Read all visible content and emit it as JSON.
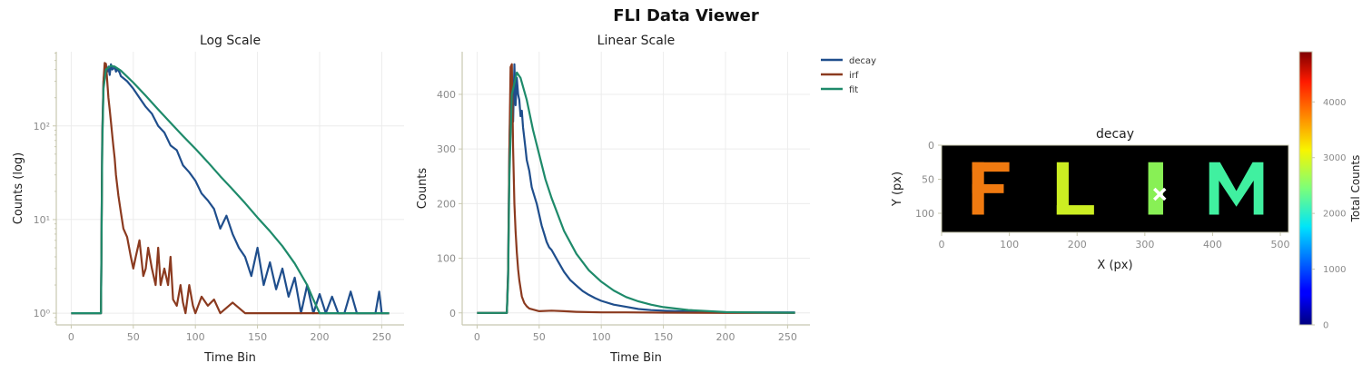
{
  "window": {
    "title": "FLI Data Viewer"
  },
  "colors": {
    "decay": "#1f4e8c",
    "irf": "#8b3a1f",
    "fit": "#1e8a6a",
    "axis": "#c8c8b0",
    "grid": "#ececec",
    "tick_text": "#8a8a8a",
    "image_background": "#000000"
  },
  "chart_data": [
    {
      "id": "log_panel",
      "type": "line",
      "title": "Log Scale",
      "xlabel": "Time Bin",
      "ylabel": "Counts (log)",
      "xscale": "linear",
      "yscale": "log",
      "xlim": [
        -12,
        268
      ],
      "ylim": [
        0.75,
        620
      ],
      "xticks": [
        0,
        50,
        100,
        150,
        200,
        250
      ],
      "yticks": [
        1,
        10,
        100
      ],
      "ytick_labels": [
        "10⁰",
        "10¹",
        "10²"
      ],
      "grid": true,
      "series": [
        {
          "name": "decay",
          "color": "#1f4e8c",
          "x": [
            0,
            24,
            25,
            26,
            27,
            28,
            29,
            30,
            31,
            32,
            33,
            34,
            35,
            36,
            37,
            38,
            39,
            40,
            45,
            50,
            55,
            60,
            65,
            70,
            75,
            80,
            85,
            90,
            95,
            100,
            105,
            110,
            115,
            120,
            125,
            130,
            135,
            140,
            145,
            150,
            155,
            160,
            165,
            170,
            175,
            180,
            185,
            190,
            195,
            200,
            205,
            210,
            215,
            220,
            225,
            230,
            235,
            240,
            245,
            248,
            250,
            252,
            256
          ],
          "y": [
            1,
            1,
            80,
            300,
            400,
            420,
            380,
            430,
            350,
            455,
            400,
            410,
            430,
            380,
            400,
            390,
            370,
            340,
            300,
            250,
            200,
            160,
            135,
            100,
            85,
            62,
            55,
            38,
            32,
            26,
            19,
            16,
            13,
            8,
            11,
            7,
            5,
            4,
            2.5,
            5,
            2,
            3.5,
            1.8,
            3,
            1.5,
            2.4,
            1,
            2,
            1,
            1.6,
            1,
            1.5,
            1,
            1,
            1.7,
            1,
            1,
            1,
            1,
            1.7,
            1,
            1,
            1
          ]
        },
        {
          "name": "irf",
          "color": "#8b3a1f",
          "x": [
            0,
            24,
            25,
            26,
            27,
            28,
            29,
            30,
            31,
            32,
            33,
            34,
            35,
            36,
            38,
            40,
            42,
            45,
            48,
            50,
            52,
            55,
            58,
            60,
            62,
            65,
            68,
            70,
            72,
            75,
            78,
            80,
            82,
            85,
            88,
            90,
            92,
            95,
            98,
            100,
            105,
            110,
            115,
            120,
            130,
            140,
            150,
            160,
            170,
            200,
            256
          ],
          "y": [
            1,
            1,
            70,
            300,
            470,
            460,
            300,
            200,
            150,
            110,
            80,
            60,
            45,
            30,
            18,
            12,
            8,
            6.5,
            4,
            3,
            4,
            6,
            2.5,
            3,
            5,
            3,
            2,
            5,
            2,
            3,
            2,
            4,
            1.4,
            1.2,
            2,
            1.3,
            1,
            2,
            1.2,
            1,
            1.5,
            1.2,
            1.4,
            1,
            1.3,
            1,
            1,
            1,
            1,
            1,
            1
          ]
        },
        {
          "name": "fit",
          "color": "#1e8a6a",
          "x": [
            0,
            24,
            25,
            26,
            28,
            30,
            32,
            35,
            40,
            50,
            60,
            70,
            80,
            90,
            100,
            110,
            120,
            130,
            140,
            150,
            160,
            170,
            180,
            190,
            195,
            200,
            210,
            256
          ],
          "y": [
            1,
            1,
            60,
            250,
            400,
            420,
            440,
            430,
            390,
            290,
            210,
            150,
            108,
            78,
            57,
            41,
            29,
            21,
            15,
            10.5,
            7.5,
            5.2,
            3.4,
            2,
            1.4,
            1,
            1,
            1
          ]
        }
      ]
    },
    {
      "id": "linear_panel",
      "type": "line",
      "title": "Linear Scale",
      "xlabel": "Time Bin",
      "ylabel": "Counts",
      "xscale": "linear",
      "yscale": "linear",
      "xlim": [
        -12,
        268
      ],
      "ylim": [
        -22,
        478
      ],
      "xticks": [
        0,
        50,
        100,
        150,
        200,
        250
      ],
      "yticks": [
        0,
        100,
        200,
        300,
        400
      ],
      "grid": true,
      "legend": {
        "position": "outside-right-top",
        "entries": [
          "decay",
          "irf",
          "fit"
        ]
      },
      "series": [
        {
          "name": "decay",
          "color": "#1f4e8c",
          "x": [
            0,
            24,
            25,
            26,
            27,
            28,
            29,
            30,
            31,
            32,
            33,
            34,
            35,
            36,
            37,
            38,
            39,
            40,
            42,
            44,
            46,
            48,
            50,
            52,
            54,
            56,
            58,
            60,
            65,
            70,
            75,
            80,
            85,
            90,
            95,
            100,
            110,
            120,
            130,
            140,
            150,
            160,
            180,
            200,
            220,
            256
          ],
          "y": [
            0,
            0,
            80,
            300,
            400,
            420,
            350,
            455,
            380,
            430,
            400,
            390,
            360,
            370,
            340,
            320,
            300,
            280,
            260,
            230,
            215,
            200,
            180,
            160,
            145,
            130,
            120,
            115,
            95,
            75,
            60,
            50,
            40,
            33,
            27,
            22,
            15,
            11,
            7,
            5,
            4,
            3,
            2,
            1,
            1,
            1
          ]
        },
        {
          "name": "irf",
          "color": "#8b3a1f",
          "x": [
            0,
            24,
            25,
            26,
            27,
            28,
            29,
            30,
            31,
            32,
            33,
            34,
            35,
            36,
            38,
            40,
            42,
            45,
            50,
            60,
            70,
            80,
            100,
            120,
            150,
            200,
            256
          ],
          "y": [
            0,
            0,
            70,
            300,
            450,
            455,
            300,
            200,
            150,
            110,
            80,
            60,
            45,
            30,
            18,
            12,
            8,
            6,
            3,
            4,
            3,
            2,
            1,
            1,
            0.5,
            0,
            0
          ]
        },
        {
          "name": "fit",
          "color": "#1e8a6a",
          "x": [
            0,
            24,
            25,
            26,
            28,
            30,
            32,
            35,
            40,
            45,
            50,
            55,
            60,
            70,
            80,
            90,
            100,
            110,
            120,
            130,
            140,
            150,
            170,
            200,
            230,
            256
          ],
          "y": [
            0,
            0,
            60,
            250,
            400,
            420,
            440,
            430,
            390,
            335,
            290,
            245,
            210,
            150,
            108,
            78,
            57,
            41,
            29,
            21,
            15,
            10.5,
            5.2,
            1.5,
            0.6,
            0.3
          ]
        }
      ]
    },
    {
      "id": "image_panel",
      "type": "heatmap",
      "title": "decay",
      "xlabel": "X (px)",
      "ylabel": "Y (px)",
      "xlim": [
        0,
        512
      ],
      "ylim": [
        128,
        0
      ],
      "xticks": [
        0,
        100,
        200,
        300,
        400,
        500
      ],
      "yticks": [
        0,
        50,
        100
      ],
      "colormap": "jet",
      "letters": [
        {
          "char": "F",
          "x_range": [
            45,
            100
          ],
          "value": 3700,
          "color": "#f07a10"
        },
        {
          "char": "L",
          "x_range": [
            170,
            225
          ],
          "value": 2900,
          "color": "#ccee22"
        },
        {
          "char": "I",
          "x_range": [
            305,
            327
          ],
          "value": 2500,
          "color": "#88f055"
        },
        {
          "char": "M",
          "x_range": [
            395,
            475
          ],
          "value": 2300,
          "color": "#40f0a0"
        }
      ],
      "selected_pixel": {
        "x": 322,
        "y": 72,
        "marker": "x",
        "color": "#ffffff"
      },
      "colorbar": {
        "label": "Total Counts",
        "range": [
          0,
          4900
        ],
        "ticks": [
          0,
          1000,
          2000,
          3000,
          4000
        ]
      }
    }
  ]
}
